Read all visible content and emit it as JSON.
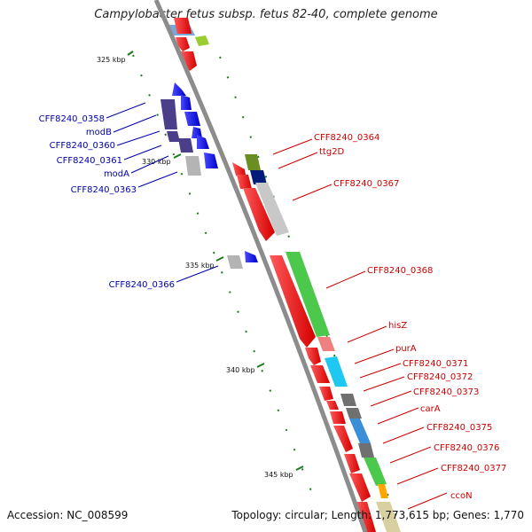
{
  "title": "Campylobacter fetus subsp. fetus 82-40, complete genome",
  "footer": {
    "accession": "Accession: NC_008599",
    "stats": "Topology: circular; Length: 1,773,615 bp; Genes: 1,770"
  },
  "colors": {
    "backbone": "#8c8c8c",
    "forward_label": "#cc0000",
    "reverse_label": "#0000aa",
    "tick_mark": "#1e7a1e"
  },
  "ticks": [
    "325 kbp",
    "330 kbp",
    "335 kbp",
    "340 kbp",
    "345 kbp"
  ],
  "reverse_genes": [
    "CFF8240_0358",
    "modB",
    "CFF8240_0360",
    "CFF8240_0361",
    "modA",
    "CFF8240_0363",
    "CFF8240_0366"
  ],
  "forward_genes": [
    "CFF8240_0364",
    "ttg2D",
    "CFF8240_0367",
    "CFF8240_0368",
    "hisZ",
    "purA",
    "CFF8240_0371",
    "CFF8240_0372",
    "CFF8240_0373",
    "carA",
    "CFF8240_0375",
    "CFF8240_0376",
    "CFF8240_0377",
    "ccoN"
  ]
}
